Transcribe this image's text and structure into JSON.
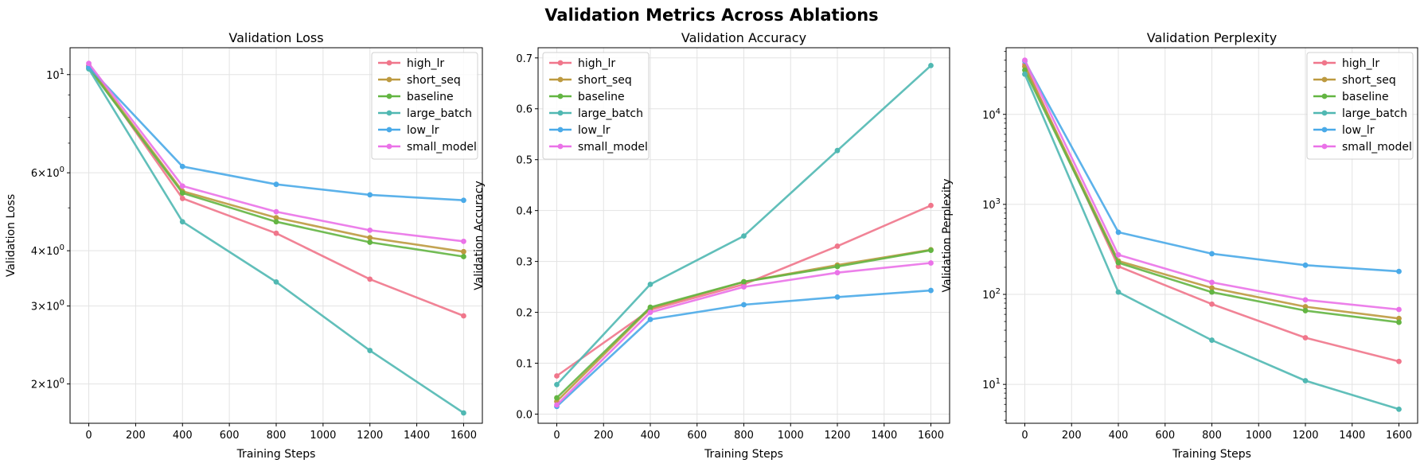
{
  "suptitle": "Validation Metrics Across Ablations",
  "colors": {
    "high_lr": "#f0768b",
    "short_seq": "#bd9a40",
    "baseline": "#63b542",
    "large_batch": "#50b8b2",
    "low_lr": "#4aaae8",
    "small_model": "#ea72e8"
  },
  "chart_data": [
    {
      "type": "line",
      "title": "Validation Loss",
      "xlabel": "Training Steps",
      "ylabel": "Validation Loss",
      "yscale": "log",
      "xlim": [
        -80,
        1680
      ],
      "ylim": [
        1.63,
        11.5
      ],
      "xticks": [
        0,
        200,
        400,
        600,
        800,
        1000,
        1200,
        1400,
        1600
      ],
      "yticks": [
        {
          "v": 10,
          "base": "10",
          "exp": "1"
        },
        {
          "v": 6,
          "base": "6×10",
          "exp": "0"
        },
        {
          "v": 4,
          "base": "4×10",
          "exp": "0"
        },
        {
          "v": 3,
          "base": "3×10",
          "exp": "0"
        },
        {
          "v": 2,
          "base": "2×10",
          "exp": "0"
        }
      ],
      "ygrid": [
        10,
        6,
        4,
        3,
        2
      ],
      "yminor": [
        9,
        8,
        7,
        5
      ],
      "grid": true,
      "legend": "top-right",
      "x": [
        0,
        400,
        800,
        1200,
        1600
      ],
      "series": [
        {
          "name": "high_lr",
          "values": [
            10.5,
            5.25,
            4.38,
            3.45,
            2.85
          ]
        },
        {
          "name": "short_seq",
          "values": [
            10.45,
            5.45,
            4.75,
            4.28,
            3.98
          ]
        },
        {
          "name": "baseline",
          "values": [
            10.35,
            5.4,
            4.65,
            4.18,
            3.88
          ]
        },
        {
          "name": "large_batch",
          "values": [
            10.3,
            4.65,
            3.4,
            2.38,
            1.72
          ]
        },
        {
          "name": "low_lr",
          "values": [
            10.4,
            6.2,
            5.65,
            5.35,
            5.2
          ]
        },
        {
          "name": "small_model",
          "values": [
            10.6,
            5.6,
            4.9,
            4.45,
            4.2
          ]
        }
      ]
    },
    {
      "type": "line",
      "title": "Validation Accuracy",
      "xlabel": "Training Steps",
      "ylabel": "Validation Accuracy",
      "yscale": "linear",
      "xlim": [
        -80,
        1680
      ],
      "ylim": [
        -0.018,
        0.72
      ],
      "xticks": [
        0,
        200,
        400,
        600,
        800,
        1000,
        1200,
        1400,
        1600
      ],
      "yticks": [
        {
          "v": 0.0,
          "base": "0.0"
        },
        {
          "v": 0.1,
          "base": "0.1"
        },
        {
          "v": 0.2,
          "base": "0.2"
        },
        {
          "v": 0.3,
          "base": "0.3"
        },
        {
          "v": 0.4,
          "base": "0.4"
        },
        {
          "v": 0.5,
          "base": "0.5"
        },
        {
          "v": 0.6,
          "base": "0.6"
        },
        {
          "v": 0.7,
          "base": "0.7"
        }
      ],
      "ygrid": [
        0.0,
        0.1,
        0.2,
        0.3,
        0.4,
        0.5,
        0.6,
        0.7
      ],
      "yminor": [],
      "grid": true,
      "legend": "top-left",
      "x": [
        0,
        400,
        800,
        1200,
        1600
      ],
      "series": [
        {
          "name": "high_lr",
          "values": [
            0.075,
            0.205,
            0.255,
            0.33,
            0.41
          ]
        },
        {
          "name": "short_seq",
          "values": [
            0.025,
            0.208,
            0.26,
            0.293,
            0.323
          ]
        },
        {
          "name": "baseline",
          "values": [
            0.032,
            0.21,
            0.26,
            0.29,
            0.322
          ]
        },
        {
          "name": "large_batch",
          "values": [
            0.058,
            0.255,
            0.35,
            0.518,
            0.685
          ]
        },
        {
          "name": "low_lr",
          "values": [
            0.015,
            0.186,
            0.215,
            0.23,
            0.243
          ]
        },
        {
          "name": "small_model",
          "values": [
            0.018,
            0.2,
            0.25,
            0.278,
            0.297
          ]
        }
      ]
    },
    {
      "type": "line",
      "title": "Validation Perplexity",
      "xlabel": "Training Steps",
      "ylabel": "Validation Perplexity",
      "yscale": "log",
      "xlim": [
        -80,
        1680
      ],
      "ylim": [
        3.7,
        55000
      ],
      "xticks": [
        0,
        200,
        400,
        600,
        800,
        1000,
        1200,
        1400,
        1600
      ],
      "yticks": [
        {
          "v": 10,
          "base": "10",
          "exp": "1"
        },
        {
          "v": 100,
          "base": "10",
          "exp": "2"
        },
        {
          "v": 1000,
          "base": "10",
          "exp": "3"
        },
        {
          "v": 10000,
          "base": "10",
          "exp": "4"
        }
      ],
      "ygrid": [
        10,
        100,
        1000,
        10000
      ],
      "yminor": [
        4,
        5,
        6,
        7,
        8,
        9,
        20,
        30,
        40,
        50,
        60,
        70,
        80,
        90,
        200,
        300,
        400,
        500,
        600,
        700,
        800,
        900,
        2000,
        3000,
        4000,
        5000,
        6000,
        7000,
        8000,
        9000,
        20000,
        30000,
        40000,
        50000
      ],
      "grid": true,
      "legend": "top-right",
      "x": [
        0,
        400,
        800,
        1200,
        1600
      ],
      "series": [
        {
          "name": "high_lr",
          "values": [
            36000,
            205,
            78,
            33,
            18
          ]
        },
        {
          "name": "short_seq",
          "values": [
            34000,
            235,
            118,
            73,
            54
          ]
        },
        {
          "name": "baseline",
          "values": [
            31000,
            225,
            106,
            66,
            49
          ]
        },
        {
          "name": "large_batch",
          "values": [
            28000,
            106,
            31,
            11,
            5.3
          ]
        },
        {
          "name": "low_lr",
          "values": [
            39000,
            490,
            283,
            211,
            180
          ]
        },
        {
          "name": "small_model",
          "values": [
            40000,
            275,
            136,
            87,
            68
          ]
        }
      ]
    }
  ]
}
